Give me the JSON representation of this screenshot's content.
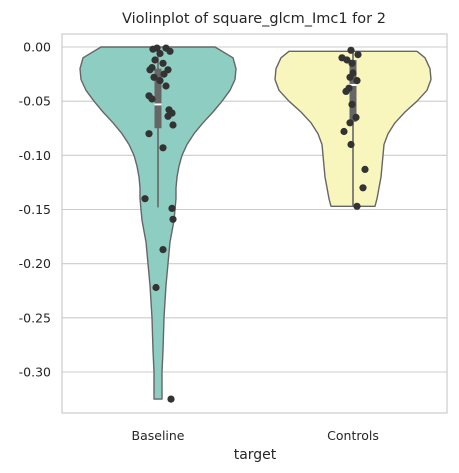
{
  "chart_data": {
    "type": "violin",
    "title": "Violinplot of square_glcm_Imc1 for 2",
    "xlabel": "target",
    "ylabel": "",
    "ylim": [
      -0.34,
      0.017
    ],
    "yticks": [
      "0.00",
      "-0.05",
      "-0.10",
      "-0.15",
      "-0.20",
      "-0.25",
      "-0.30"
    ],
    "ytick_values": [
      0.0,
      -0.05,
      -0.1,
      -0.15,
      -0.2,
      -0.25,
      -0.3
    ],
    "grid": true,
    "categories": [
      "Baseline",
      "Controls"
    ],
    "series": [
      {
        "category": "Baseline",
        "color": "#8ecdc2",
        "violin_range": [
          -0.325,
          0.0
        ],
        "quartiles": {
          "q1": -0.075,
          "median": -0.053,
          "q3": -0.02
        },
        "whiskers": [
          -0.148,
          0.0
        ],
        "points": [
          [
            -0.01,
            -0.001
          ],
          [
            0.08,
            -0.001
          ],
          [
            -0.05,
            -0.002
          ],
          [
            0.02,
            -0.006
          ],
          [
            0.12,
            -0.004
          ],
          [
            -0.03,
            -0.012
          ],
          [
            0.05,
            -0.015
          ],
          [
            -0.06,
            -0.019
          ],
          [
            0.1,
            -0.021
          ],
          [
            -0.08,
            -0.021
          ],
          [
            0.06,
            -0.025
          ],
          [
            -0.04,
            -0.028
          ],
          [
            0.02,
            -0.031
          ],
          [
            0.08,
            -0.036
          ],
          [
            -0.09,
            -0.045
          ],
          [
            -0.06,
            -0.048
          ],
          [
            0.11,
            -0.058
          ],
          [
            0.14,
            -0.061
          ],
          [
            0.1,
            -0.064
          ],
          [
            0.15,
            -0.072
          ],
          [
            -0.09,
            -0.08
          ],
          [
            0.05,
            -0.093
          ],
          [
            -0.13,
            -0.14
          ],
          [
            0.14,
            -0.149
          ],
          [
            0.15,
            -0.159
          ],
          [
            0.05,
            -0.187
          ],
          [
            -0.02,
            -0.222
          ],
          [
            0.13,
            -0.325
          ]
        ]
      },
      {
        "category": "Controls",
        "color": "#f8f6bd",
        "violin_range": [
          -0.147,
          -0.004
        ],
        "quartiles": {
          "q1": -0.069,
          "median": -0.035,
          "q3": -0.012
        },
        "whiskers": [
          -0.147,
          -0.003
        ],
        "points": [
          [
            -0.02,
            -0.003
          ],
          [
            0.05,
            -0.007
          ],
          [
            -0.11,
            -0.01
          ],
          [
            -0.06,
            -0.012
          ],
          [
            -0.01,
            -0.015
          ],
          [
            0.0,
            -0.024
          ],
          [
            -0.03,
            -0.028
          ],
          [
            0.04,
            -0.031
          ],
          [
            -0.04,
            -0.038
          ],
          [
            -0.07,
            -0.041
          ],
          [
            -0.01,
            -0.053
          ],
          [
            0.03,
            -0.065
          ],
          [
            -0.03,
            -0.07
          ],
          [
            -0.09,
            -0.078
          ],
          [
            -0.02,
            -0.09
          ],
          [
            0.12,
            -0.113
          ],
          [
            0.1,
            -0.13
          ],
          [
            0.04,
            -0.147
          ]
        ]
      }
    ]
  }
}
